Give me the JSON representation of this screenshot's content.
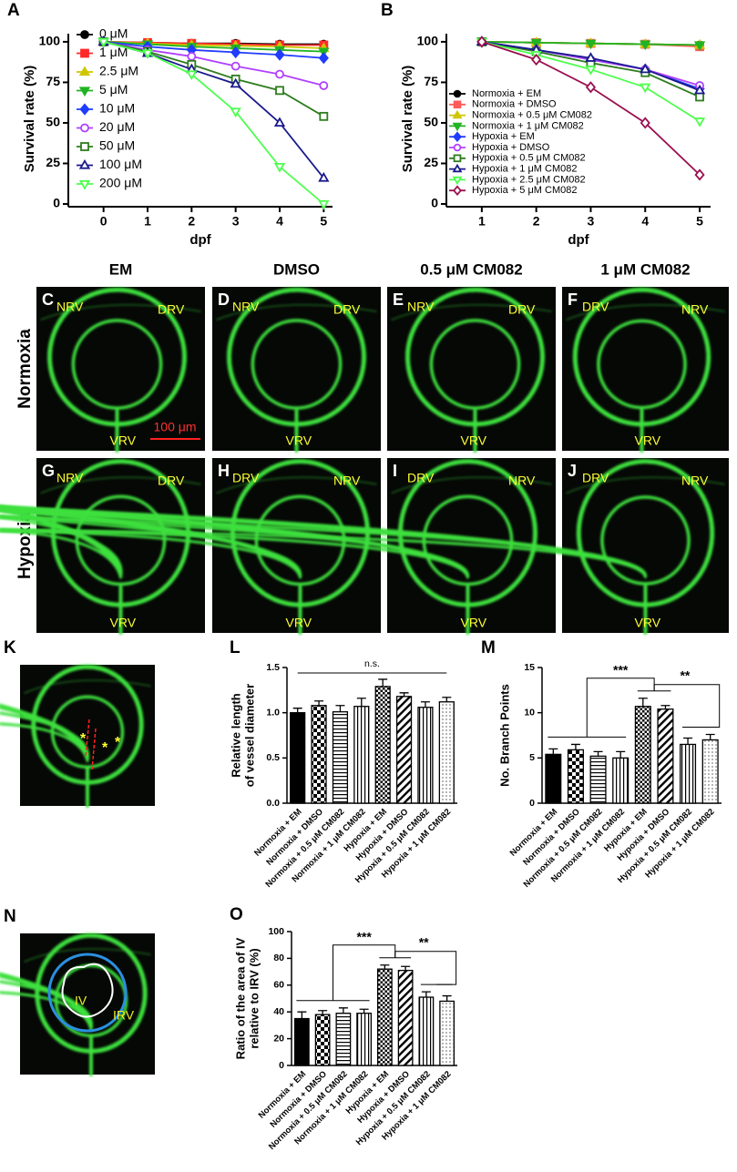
{
  "chart_data": [
    {
      "type": "line",
      "panel": "A",
      "ylabel": "Survival rate (%)",
      "xlabel": "dpf",
      "x": [
        0,
        1,
        2,
        3,
        4,
        5
      ],
      "xlim": [
        -0.8,
        5.2
      ],
      "xticks": [
        0,
        1,
        2,
        3,
        4,
        5
      ],
      "ylim": [
        0,
        105
      ],
      "yticks": [
        0,
        25,
        50,
        75,
        100
      ],
      "legend": "upper-left",
      "series": [
        {
          "name": "0 μM",
          "color": "#000000",
          "marker": "circle",
          "filled": true,
          "values": [
            100,
            99.5,
            99,
            99,
            98.5,
            98.5
          ]
        },
        {
          "name": "1 μM",
          "color": "#ff2a2a",
          "marker": "square",
          "filled": true,
          "values": [
            100,
            99.5,
            99,
            98.5,
            98,
            98
          ]
        },
        {
          "name": "2.5 μM",
          "color": "#d0c600",
          "marker": "triangle-up",
          "filled": true,
          "values": [
            100,
            99,
            98,
            97.5,
            97,
            96
          ]
        },
        {
          "name": "5 μM",
          "color": "#22b322",
          "marker": "triangle-down",
          "filled": true,
          "values": [
            100,
            98.5,
            97,
            96,
            95,
            94
          ]
        },
        {
          "name": "10 μM",
          "color": "#1f3cff",
          "marker": "diamond",
          "filled": true,
          "values": [
            100,
            97,
            95,
            93.5,
            92,
            90
          ]
        },
        {
          "name": "20 μM",
          "color": "#b040ff",
          "marker": "circle",
          "filled": false,
          "values": [
            100,
            95,
            91,
            85,
            80,
            73
          ]
        },
        {
          "name": "50 μM",
          "color": "#2e7d1e",
          "marker": "square",
          "filled": false,
          "values": [
            100,
            94,
            86,
            77,
            70,
            54
          ]
        },
        {
          "name": "100 μM",
          "color": "#1a1a8c",
          "marker": "triangle-up",
          "filled": false,
          "values": [
            100,
            93,
            83,
            74,
            50,
            16
          ]
        },
        {
          "name": "200 μM",
          "color": "#4cff4c",
          "marker": "triangle-down",
          "filled": false,
          "values": [
            100,
            93,
            80,
            57,
            23,
            0
          ]
        }
      ]
    },
    {
      "type": "line",
      "panel": "B",
      "ylabel": "Survival rate (%)",
      "xlabel": "dpf",
      "x": [
        1,
        2,
        3,
        4,
        5
      ],
      "xlim": [
        0.35,
        5.2
      ],
      "xticks": [
        1,
        2,
        3,
        4,
        5
      ],
      "ylim": [
        0,
        105
      ],
      "yticks": [
        0,
        25,
        50,
        75,
        100
      ],
      "legend": "lower-left",
      "series": [
        {
          "name": "Normoxia + EM",
          "color": "#000000",
          "marker": "circle",
          "filled": true,
          "values": [
            100,
            99.5,
            99,
            98.5,
            98
          ]
        },
        {
          "name": "Normoxia + DMSO",
          "color": "#ff5a5a",
          "marker": "square",
          "filled": true,
          "values": [
            100,
            99.5,
            99,
            98.5,
            97
          ]
        },
        {
          "name": "Normoxia + 0.5 μM CM082",
          "color": "#d0c600",
          "marker": "triangle-up",
          "filled": true,
          "values": [
            100,
            99.5,
            99,
            98.5,
            98
          ]
        },
        {
          "name": "Normoxia + 1 μM CM082",
          "color": "#22b322",
          "marker": "triangle-down",
          "filled": true,
          "values": [
            100,
            99.5,
            99,
            98.5,
            98
          ]
        },
        {
          "name": "Hypoxia + EM",
          "color": "#1f3cff",
          "marker": "diamond",
          "filled": true,
          "values": [
            100,
            95,
            89,
            83,
            71
          ]
        },
        {
          "name": "Hypoxia + DMSO",
          "color": "#b040ff",
          "marker": "circle",
          "filled": false,
          "values": [
            100,
            95,
            89,
            83,
            73
          ]
        },
        {
          "name": "Hypoxia + 0.5 μM CM082",
          "color": "#2e7d1e",
          "marker": "square",
          "filled": false,
          "values": [
            100,
            94,
            87,
            81,
            66
          ]
        },
        {
          "name": "Hypoxia + 1 μM CM082",
          "color": "#1a1a8c",
          "marker": "triangle-up",
          "filled": false,
          "values": [
            100,
            95,
            90,
            83,
            70
          ]
        },
        {
          "name": "Hypoxia + 2.5 μM CM082",
          "color": "#4cff4c",
          "marker": "triangle-down",
          "filled": false,
          "values": [
            100,
            92,
            83,
            72,
            51
          ]
        },
        {
          "name": "Hypoxia + 5 μM CM082",
          "color": "#9b1050",
          "marker": "diamond",
          "filled": false,
          "values": [
            100,
            89,
            72,
            50,
            18
          ]
        }
      ]
    },
    {
      "type": "bar",
      "panel": "L",
      "ylabel": [
        "Relative length",
        "of vessel diameter"
      ],
      "categories": [
        "Normoxia + EM",
        "Normoxia + DMSO",
        "Normoxia + 0.5 μM CM082",
        "Normoxia + 1 μM CM082",
        "Hypoxia + EM",
        "Hypoxia + DMSO",
        "Hypoxia + 0.5 μM CM082",
        "Hypoxia + 1 μM CM082"
      ],
      "values": [
        1.0,
        1.08,
        1.01,
        1.07,
        1.29,
        1.18,
        1.06,
        1.12
      ],
      "errors": [
        0.05,
        0.05,
        0.07,
        0.09,
        0.08,
        0.04,
        0.06,
        0.05
      ],
      "fills": [
        "solid",
        "checker",
        "hlines",
        "vlines",
        "dense",
        "diagonal",
        "vlines",
        "dots"
      ],
      "ylim": [
        0,
        1.5
      ],
      "yticks": [
        {
          "value": 0,
          "label": "0.0"
        },
        0.5,
        {
          "value": 1,
          "label": "1.0"
        },
        1.5
      ],
      "annotations": [
        {
          "text": "n.s."
        }
      ]
    },
    {
      "type": "bar",
      "panel": "M",
      "ylabel": [
        "No. Branch Points"
      ],
      "categories": [
        "Normoxia + EM",
        "Normoxia + DMSO",
        "Normoxia + 0.5 μM CM082",
        "Normoxia + 1 μM CM082",
        "Hypoxia + EM",
        "Hypoxia + DMSO",
        "Hypoxia + 0.5 μM CM082",
        "Hypoxia + 1 μM CM082"
      ],
      "values": [
        5.4,
        5.9,
        5.2,
        5.0,
        10.7,
        10.4,
        6.5,
        7.0
      ],
      "errors": [
        0.6,
        0.6,
        0.5,
        0.7,
        0.9,
        0.4,
        0.7,
        0.6
      ],
      "fills": [
        "solid",
        "checker",
        "hlines",
        "vlines",
        "dense",
        "diagonal",
        "vlines",
        "dots"
      ],
      "ylim": [
        0,
        15
      ],
      "yticks": [
        0,
        5,
        10,
        15
      ],
      "annotations": [
        {
          "text": "***"
        },
        {
          "text": "**"
        }
      ]
    },
    {
      "type": "bar",
      "panel": "O",
      "ylabel": [
        "Ratio of the area of IV",
        "relative to IRV (%)"
      ],
      "categories": [
        "Normoxia + EM",
        "Normoxia + DMSO",
        "Normoxia + 0.5 μM CM082",
        "Normoxia + 1 μM CM082",
        "Hypoxia + EM",
        "Hypoxia + DMSO",
        "Hypoxia + 0.5 μM CM082",
        "Hypoxia + 1 μM CM082"
      ],
      "values": [
        35,
        38,
        39,
        39,
        72,
        71,
        51,
        48
      ],
      "errors": [
        5,
        3,
        4,
        3,
        3,
        3,
        4,
        4
      ],
      "fills": [
        "solid",
        "checker",
        "hlines",
        "vlines",
        "dense",
        "diagonal",
        "vlines",
        "dots"
      ],
      "ylim": [
        0,
        100
      ],
      "yticks": [
        0,
        20,
        40,
        60,
        80,
        100
      ],
      "annotations": [
        {
          "text": "***"
        },
        {
          "text": "**"
        }
      ]
    }
  ],
  "figure": {
    "column_headers": [
      "EM",
      "DMSO",
      "0.5 μM CM082",
      "1 μM CM082"
    ],
    "row_labels": [
      "Normoxia",
      "Hypoxia"
    ],
    "panels": [
      {
        "letter": "C",
        "labels": [
          "NRV",
          "DRV",
          "VRV"
        ]
      },
      {
        "letter": "D",
        "labels": [
          "NRV",
          "DRV",
          "VRV"
        ]
      },
      {
        "letter": "E",
        "labels": [
          "NRV",
          "DRV",
          "VRV"
        ]
      },
      {
        "letter": "F",
        "labels": [
          "DRV",
          "NRV",
          "VRV"
        ]
      },
      {
        "letter": "G",
        "labels": [
          "NRV",
          "DRV",
          "VRV"
        ]
      },
      {
        "letter": "H",
        "labels": [
          "DRV",
          "NRV",
          "VRV"
        ]
      },
      {
        "letter": "I",
        "labels": [
          "DRV",
          "NRV",
          "VRV"
        ]
      },
      {
        "letter": "J",
        "labels": [
          "DRV",
          "NRV",
          "VRV"
        ]
      }
    ],
    "scale_bar": "100 μm",
    "panel_k": {
      "letter": "K",
      "marks": [
        "*",
        "*",
        "*"
      ]
    },
    "panel_n": {
      "letter": "N",
      "labels": [
        "IV",
        "IRV"
      ]
    }
  }
}
